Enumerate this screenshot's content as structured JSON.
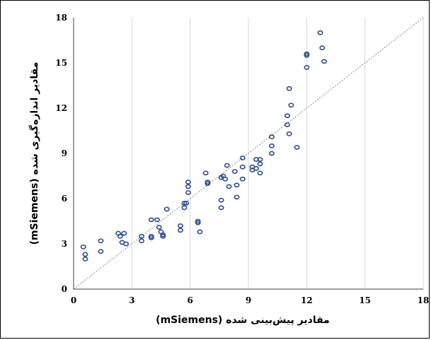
{
  "chart_data": {
    "type": "scatter",
    "title": "",
    "xlabel": "مقادیر پیش‌بینی شده (mSiemens)",
    "ylabel": "مقادیر اندازه‌گیری شده (mSiemens)",
    "xlim": [
      0,
      18
    ],
    "ylim": [
      0,
      18
    ],
    "xticks": [
      "0",
      "3",
      "6",
      "9",
      "12",
      "15",
      "18"
    ],
    "yticks": [
      "0",
      "3",
      "6",
      "9",
      "12",
      "15",
      "18"
    ],
    "grid": "vertical",
    "reference_line": "y = x (dotted)",
    "marker": "hollow circle",
    "colors": {
      "marker": "#2f4f8f",
      "reference_line": "#888888",
      "grid": "#d9d9d9"
    },
    "points": [
      [
        0.5,
        2.8
      ],
      [
        0.6,
        2.3
      ],
      [
        0.6,
        2.0
      ],
      [
        1.4,
        3.2
      ],
      [
        1.4,
        2.5
      ],
      [
        2.3,
        3.7
      ],
      [
        2.4,
        3.5
      ],
      [
        2.5,
        3.1
      ],
      [
        2.6,
        3.7
      ],
      [
        2.7,
        3.0
      ],
      [
        3.5,
        3.5
      ],
      [
        3.5,
        3.2
      ],
      [
        4.0,
        4.6
      ],
      [
        4.0,
        3.5
      ],
      [
        4.0,
        3.4
      ],
      [
        4.3,
        4.6
      ],
      [
        4.4,
        4.1
      ],
      [
        4.5,
        3.8
      ],
      [
        4.6,
        3.6
      ],
      [
        4.6,
        3.5
      ],
      [
        4.8,
        5.3
      ],
      [
        5.5,
        4.2
      ],
      [
        5.5,
        3.9
      ],
      [
        5.7,
        5.7
      ],
      [
        5.7,
        5.4
      ],
      [
        5.8,
        5.7
      ],
      [
        5.9,
        7.1
      ],
      [
        5.9,
        6.8
      ],
      [
        5.9,
        6.4
      ],
      [
        6.4,
        4.5
      ],
      [
        6.4,
        4.4
      ],
      [
        6.5,
        3.8
      ],
      [
        6.8,
        7.7
      ],
      [
        6.9,
        7.1
      ],
      [
        6.9,
        7.0
      ],
      [
        7.6,
        7.4
      ],
      [
        7.6,
        5.9
      ],
      [
        7.6,
        5.4
      ],
      [
        7.7,
        7.5
      ],
      [
        7.8,
        7.3
      ],
      [
        7.9,
        8.2
      ],
      [
        8.0,
        6.8
      ],
      [
        8.3,
        7.8
      ],
      [
        8.4,
        6.9
      ],
      [
        8.4,
        6.1
      ],
      [
        8.7,
        8.7
      ],
      [
        8.7,
        8.1
      ],
      [
        8.7,
        7.3
      ],
      [
        9.2,
        8.1
      ],
      [
        9.2,
        7.9
      ],
      [
        9.4,
        8.6
      ],
      [
        9.4,
        8.0
      ],
      [
        9.6,
        8.6
      ],
      [
        9.6,
        8.3
      ],
      [
        9.6,
        7.7
      ],
      [
        10.2,
        10.1
      ],
      [
        10.2,
        9.5
      ],
      [
        10.2,
        9.0
      ],
      [
        11.0,
        11.5
      ],
      [
        11.0,
        10.9
      ],
      [
        11.1,
        10.3
      ],
      [
        11.1,
        13.3
      ],
      [
        11.2,
        12.2
      ],
      [
        11.5,
        9.4
      ],
      [
        12.0,
        15.6
      ],
      [
        12.0,
        15.5
      ],
      [
        12.0,
        14.7
      ],
      [
        12.7,
        17.0
      ],
      [
        12.8,
        16.0
      ],
      [
        12.9,
        15.1
      ]
    ]
  }
}
